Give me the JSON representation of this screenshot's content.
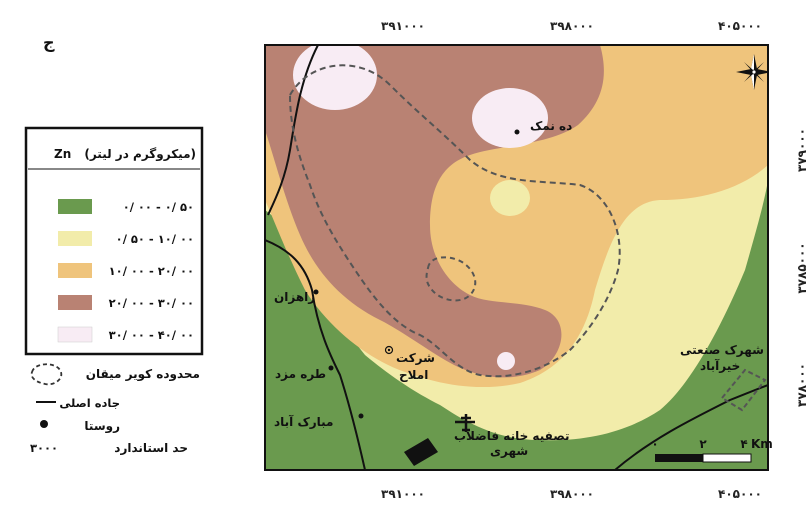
{
  "panel_label": "ج",
  "axes": {
    "x_ticks": [
      "۳۹۱۰۰۰",
      "۳۹۸۰۰۰",
      "۴۰۵۰۰۰"
    ],
    "y_ticks": [
      "۳۷۹۰۰۰",
      "۳۷۸۵۰۰۰",
      "۳۷۸۰۰۰"
    ]
  },
  "legend": {
    "title": "(میکروگرم در لیتر)",
    "element": "Zn",
    "classes": [
      {
        "label": "۰/ ۰۰ - ۰/ ۵۰",
        "color": "#6a9a4e"
      },
      {
        "label": "۰/ ۵۰ - ۱۰/ ۰۰",
        "color": "#f2ecaa"
      },
      {
        "label": "۱۰/ ۰۰ - ۲۰/ ۰۰",
        "color": "#efc47c"
      },
      {
        "label": "۲۰/ ۰۰ - ۳۰/ ۰۰",
        "color": "#b98273"
      },
      {
        "label": "۳۰/ ۰۰ - ۴۰/ ۰۰",
        "color": "#f8ecf4"
      }
    ],
    "boundary_label": "محدوده کویر میقان",
    "road_label": "جاده اصلی",
    "village_label": "روستا",
    "standard_label": "حد استاندارد",
    "standard_value": "۳۰۰۰"
  },
  "places": {
    "deh_namak": "ده نمک",
    "rahzan": "راهزان",
    "torreh_mazd": "طره مزد",
    "mobarak_abad": "مبارک آباد",
    "sherkat_line1": "شرکت",
    "sherkat_line2": "املاح",
    "tasfieh_line1": "تصفیه خانه فاضلاب",
    "tasfieh_line2": "شهری",
    "shahrak_line1": "شهرک صنعتی",
    "shahrak_line2": "خیرآباد"
  },
  "scalebar": {
    "labels": [
      "۰",
      "۲",
      "۴"
    ],
    "unit": "Km"
  },
  "north_arrow": "compass-rose-icon"
}
